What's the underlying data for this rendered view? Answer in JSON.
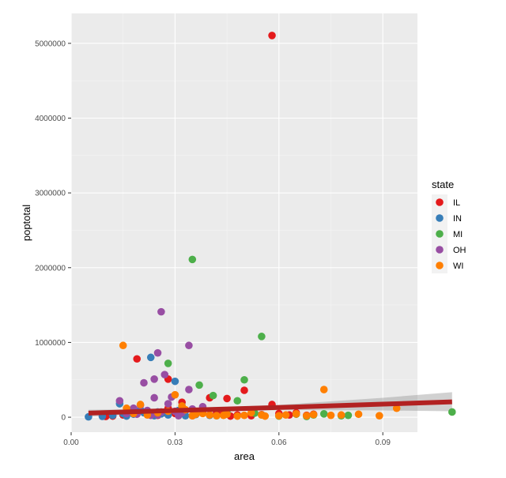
{
  "chart_data": {
    "type": "scatter",
    "xlabel": "area",
    "ylabel": "poptotal",
    "xlim": [
      0.0,
      0.1
    ],
    "ylim": [
      -200000,
      5400000
    ],
    "x_ticks": [
      {
        "value": 0.0,
        "label": "0.00"
      },
      {
        "value": 0.03,
        "label": "0.03"
      },
      {
        "value": 0.06,
        "label": "0.06"
      },
      {
        "value": 0.09,
        "label": "0.09"
      }
    ],
    "y_ticks": [
      {
        "value": 0,
        "label": "0"
      },
      {
        "value": 1000000,
        "label": "1000000"
      },
      {
        "value": 2000000,
        "label": "2000000"
      },
      {
        "value": 3000000,
        "label": "3000000"
      },
      {
        "value": 4000000,
        "label": "4000000"
      },
      {
        "value": 5000000,
        "label": "5000000"
      }
    ],
    "grid": true,
    "legend": {
      "title": "state",
      "placement": "right"
    },
    "background_color": "#ebebeb",
    "series": [
      {
        "name": "IL",
        "color": "#e41a1c",
        "points": [
          [
            0.058,
            5105000
          ],
          [
            0.019,
            780000
          ],
          [
            0.028,
            510000
          ],
          [
            0.045,
            250000
          ],
          [
            0.05,
            360000
          ],
          [
            0.04,
            260000
          ],
          [
            0.058,
            170000
          ],
          [
            0.065,
            60000
          ],
          [
            0.07,
            40000
          ],
          [
            0.028,
            120000
          ],
          [
            0.033,
            90000
          ],
          [
            0.038,
            60000
          ],
          [
            0.044,
            45000
          ],
          [
            0.048,
            30000
          ],
          [
            0.052,
            20000
          ],
          [
            0.015,
            30000
          ],
          [
            0.022,
            40000
          ],
          [
            0.025,
            25000
          ],
          [
            0.035,
            20000
          ],
          [
            0.06,
            50000
          ],
          [
            0.063,
            30000
          ],
          [
            0.012,
            15000
          ],
          [
            0.03,
            50000
          ],
          [
            0.042,
            70000
          ],
          [
            0.055,
            35000
          ],
          [
            0.068,
            25000
          ],
          [
            0.032,
            200000
          ],
          [
            0.01,
            10000
          ],
          [
            0.046,
            15000
          ],
          [
            0.027,
            60000
          ]
        ]
      },
      {
        "name": "IN",
        "color": "#377eb8",
        "points": [
          [
            0.005,
            5000
          ],
          [
            0.023,
            800000
          ],
          [
            0.03,
            480000
          ],
          [
            0.014,
            180000
          ],
          [
            0.02,
            100000
          ],
          [
            0.025,
            70000
          ],
          [
            0.018,
            40000
          ],
          [
            0.012,
            25000
          ],
          [
            0.028,
            30000
          ],
          [
            0.033,
            20000
          ],
          [
            0.016,
            15000
          ],
          [
            0.021,
            60000
          ],
          [
            0.026,
            45000
          ],
          [
            0.009,
            12000
          ],
          [
            0.036,
            35000
          ],
          [
            0.04,
            25000
          ],
          [
            0.017,
            70000
          ],
          [
            0.024,
            20000
          ],
          [
            0.031,
            90000
          ],
          [
            0.015,
            50000
          ]
        ]
      },
      {
        "name": "MI",
        "color": "#4daf4a",
        "points": [
          [
            0.035,
            2110000
          ],
          [
            0.055,
            1080000
          ],
          [
            0.028,
            720000
          ],
          [
            0.041,
            290000
          ],
          [
            0.05,
            500000
          ],
          [
            0.037,
            430000
          ],
          [
            0.048,
            220000
          ],
          [
            0.11,
            70000
          ],
          [
            0.07,
            30000
          ],
          [
            0.078,
            20000
          ],
          [
            0.06,
            15000
          ],
          [
            0.065,
            40000
          ],
          [
            0.045,
            60000
          ],
          [
            0.038,
            100000
          ],
          [
            0.032,
            150000
          ],
          [
            0.055,
            30000
          ],
          [
            0.08,
            25000
          ],
          [
            0.073,
            45000
          ],
          [
            0.068,
            10000
          ],
          [
            0.042,
            20000
          ],
          [
            0.053,
            55000
          ]
        ]
      },
      {
        "name": "OH",
        "color": "#984ea3",
        "points": [
          [
            0.026,
            1410000
          ],
          [
            0.034,
            960000
          ],
          [
            0.025,
            860000
          ],
          [
            0.027,
            570000
          ],
          [
            0.024,
            510000
          ],
          [
            0.021,
            460000
          ],
          [
            0.034,
            370000
          ],
          [
            0.029,
            270000
          ],
          [
            0.014,
            220000
          ],
          [
            0.024,
            260000
          ],
          [
            0.02,
            160000
          ],
          [
            0.018,
            120000
          ],
          [
            0.022,
            90000
          ],
          [
            0.03,
            80000
          ],
          [
            0.032,
            60000
          ],
          [
            0.016,
            50000
          ],
          [
            0.019,
            40000
          ],
          [
            0.025,
            30000
          ],
          [
            0.035,
            110000
          ],
          [
            0.038,
            140000
          ],
          [
            0.028,
            180000
          ],
          [
            0.031,
            20000
          ],
          [
            0.026,
            70000
          ],
          [
            0.023,
            25000
          ]
        ]
      },
      {
        "name": "WI",
        "color": "#ff7f00",
        "points": [
          [
            0.015,
            960000
          ],
          [
            0.073,
            370000
          ],
          [
            0.094,
            120000
          ],
          [
            0.089,
            20000
          ],
          [
            0.083,
            40000
          ],
          [
            0.078,
            30000
          ],
          [
            0.075,
            25000
          ],
          [
            0.07,
            35000
          ],
          [
            0.065,
            45000
          ],
          [
            0.06,
            20000
          ],
          [
            0.055,
            30000
          ],
          [
            0.05,
            25000
          ],
          [
            0.045,
            40000
          ],
          [
            0.04,
            30000
          ],
          [
            0.035,
            20000
          ],
          [
            0.03,
            300000
          ],
          [
            0.032,
            150000
          ],
          [
            0.02,
            170000
          ],
          [
            0.025,
            60000
          ],
          [
            0.028,
            80000
          ],
          [
            0.033,
            100000
          ],
          [
            0.038,
            50000
          ],
          [
            0.042,
            20000
          ],
          [
            0.048,
            15000
          ],
          [
            0.052,
            60000
          ],
          [
            0.016,
            120000
          ],
          [
            0.018,
            50000
          ],
          [
            0.022,
            30000
          ],
          [
            0.036,
            40000
          ],
          [
            0.044,
            25000
          ],
          [
            0.056,
            15000
          ],
          [
            0.062,
            30000
          ],
          [
            0.068,
            20000
          ]
        ]
      }
    ],
    "trend_line": {
      "color": "#b22222",
      "ribbon_color": "#999999",
      "x": [
        0.005,
        0.03,
        0.06,
        0.09,
        0.11
      ],
      "y": [
        55000,
        90000,
        130000,
        175000,
        205000
      ],
      "lower": [
        10000,
        70000,
        95000,
        90000,
        80000
      ],
      "upper": [
        100000,
        110000,
        165000,
        260000,
        335000
      ]
    }
  }
}
